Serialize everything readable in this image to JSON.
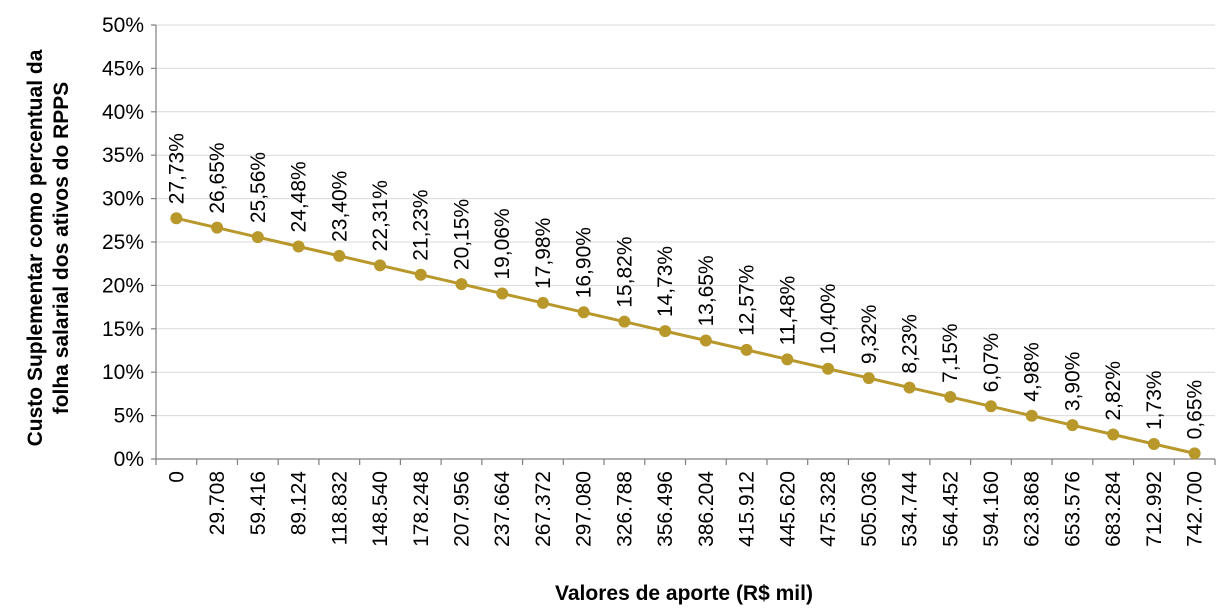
{
  "chart_data": {
    "type": "line",
    "title": "",
    "xlabel": "Valores de aporte (R$ mil)",
    "ylabel_lines": [
      "Custo Suplementar como percentual da",
      "folha salarial dos ativos do RPPS"
    ],
    "ylim": [
      0,
      50
    ],
    "y_ticks": [
      "0%",
      "5%",
      "10%",
      "15%",
      "20%",
      "25%",
      "30%",
      "35%",
      "40%",
      "45%",
      "50%"
    ],
    "y_tick_values": [
      0,
      5,
      10,
      15,
      20,
      25,
      30,
      35,
      40,
      45,
      50
    ],
    "grid": true,
    "legend": "none",
    "series_color": "#B8972B",
    "grid_color": "#D9D9D9",
    "categories": [
      "0",
      "29.708",
      "59.416",
      "89.124",
      "118.832",
      "148.540",
      "178.248",
      "207.956",
      "237.664",
      "267.372",
      "297.080",
      "326.788",
      "356.496",
      "386.204",
      "415.912",
      "445.620",
      "475.328",
      "505.036",
      "534.744",
      "564.452",
      "594.160",
      "623.868",
      "653.576",
      "683.284",
      "712.992",
      "742.700"
    ],
    "values": [
      27.73,
      26.65,
      25.56,
      24.48,
      23.4,
      22.31,
      21.23,
      20.15,
      19.06,
      17.98,
      16.9,
      15.82,
      14.73,
      13.65,
      12.57,
      11.48,
      10.4,
      9.32,
      8.23,
      7.15,
      6.07,
      4.98,
      3.9,
      2.82,
      1.73,
      0.65
    ],
    "data_labels": [
      "27,73%",
      "26,65%",
      "25,56%",
      "24,48%",
      "23,40%",
      "22,31%",
      "21,23%",
      "20,15%",
      "19,06%",
      "17,98%",
      "16,90%",
      "15,82%",
      "14,73%",
      "13,65%",
      "12,57%",
      "11,48%",
      "10,40%",
      "9,32%",
      "8,23%",
      "7,15%",
      "6,07%",
      "4,98%",
      "3,90%",
      "2,82%",
      "1,73%",
      "0,65%"
    ]
  }
}
